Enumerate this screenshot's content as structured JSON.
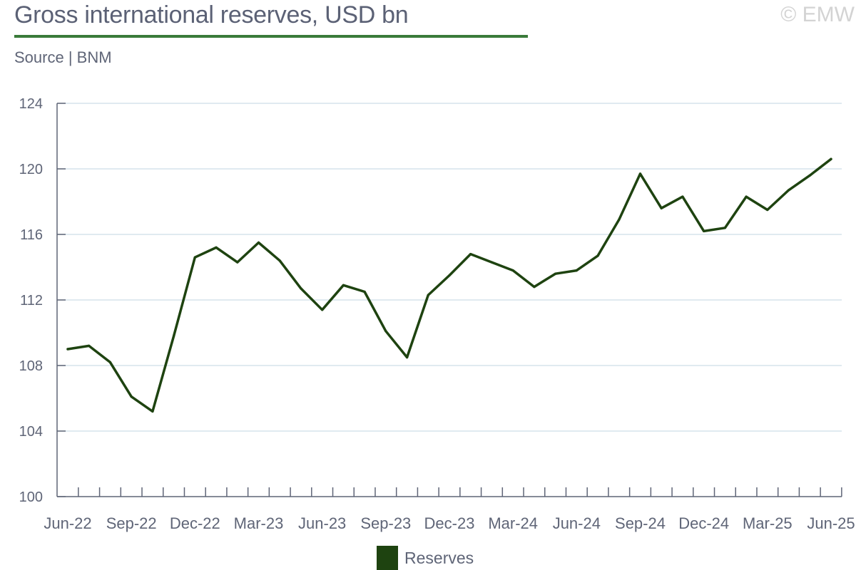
{
  "title": "Gross international reserves, USD bn",
  "source": "Source | BNM",
  "copyright": "© EMW",
  "colors": {
    "accent": "#3a7a3a",
    "series": "#1e4310",
    "grid": "#d6e3ec",
    "axis": "#5f6577"
  },
  "chart_data": {
    "type": "line",
    "title": "Gross international reserves, USD bn",
    "xlabel": "",
    "ylabel": "",
    "ylim": [
      100,
      124
    ],
    "yticks": [
      100,
      104,
      108,
      112,
      116,
      120,
      124
    ],
    "grid": true,
    "legend_position": "bottom",
    "x": [
      "Jun-22",
      "Jul-22",
      "Aug-22",
      "Sep-22",
      "Oct-22",
      "Nov-22",
      "Dec-22",
      "Jan-23",
      "Feb-23",
      "Mar-23",
      "Apr-23",
      "May-23",
      "Jun-23",
      "Jul-23",
      "Aug-23",
      "Sep-23",
      "Oct-23",
      "Nov-23",
      "Dec-23",
      "Jan-24",
      "Feb-24",
      "Mar-24",
      "Apr-24",
      "May-24",
      "Jun-24",
      "Jul-24",
      "Aug-24",
      "Sep-24",
      "Oct-24",
      "Nov-24",
      "Dec-24",
      "Jan-25",
      "Feb-25",
      "Mar-25",
      "Apr-25",
      "May-25",
      "Jun-25"
    ],
    "xtick_labels": [
      "Jun-22",
      "Sep-22",
      "Dec-22",
      "Mar-23",
      "Jun-23",
      "Sep-23",
      "Dec-23",
      "Mar-24",
      "Jun-24",
      "Sep-24",
      "Dec-24",
      "Mar-25",
      "Jun-25"
    ],
    "series": [
      {
        "name": "Reserves",
        "color": "#1e4310",
        "values": [
          109.0,
          109.2,
          108.2,
          106.1,
          105.2,
          109.8,
          114.6,
          115.2,
          114.3,
          115.5,
          114.4,
          112.7,
          111.4,
          112.9,
          112.5,
          110.1,
          108.5,
          112.3,
          113.5,
          114.8,
          114.3,
          113.8,
          112.8,
          113.6,
          113.8,
          114.7,
          116.9,
          119.7,
          117.6,
          118.3,
          116.2,
          116.4,
          118.3,
          117.5,
          118.7,
          119.6,
          120.6
        ]
      }
    ]
  }
}
